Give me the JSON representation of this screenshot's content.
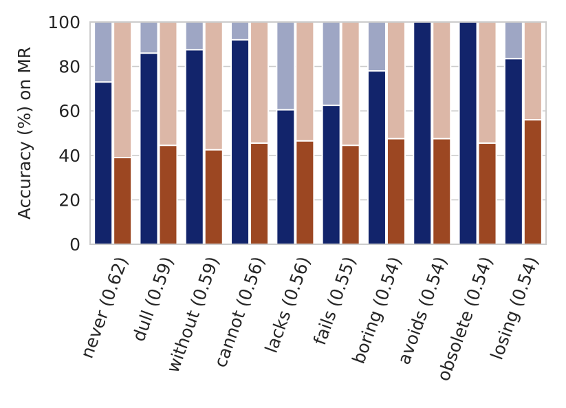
{
  "chart_data": {
    "type": "bar",
    "title": "",
    "xlabel": "",
    "ylabel": "Accuracy (%) on MR",
    "ylim": [
      0,
      100
    ],
    "yticks": [
      0,
      20,
      40,
      60,
      80,
      100
    ],
    "grid": true,
    "categories": [
      "never (0.62)",
      "dull (0.59)",
      "without (0.59)",
      "cannot (0.56)",
      "lacks (0.56)",
      "fails (0.55)",
      "boring (0.54)",
      "avoids (0.54)",
      "obsolete (0.54)",
      "losing (0.54)"
    ],
    "series": [
      {
        "values": [
          73,
          86,
          87.5,
          92,
          60.5,
          62.5,
          78,
          100,
          100,
          83.5
        ],
        "color": "#12246b"
      },
      {
        "values": [
          39,
          44.5,
          42.5,
          45.5,
          46.5,
          44.5,
          47.5,
          47.5,
          45.5,
          56
        ],
        "color": "#9c4722"
      }
    ],
    "background_bar_values": [
      100,
      100
    ],
    "background_colors": [
      "#9ea6c4",
      "#dcb7a7"
    ]
  }
}
